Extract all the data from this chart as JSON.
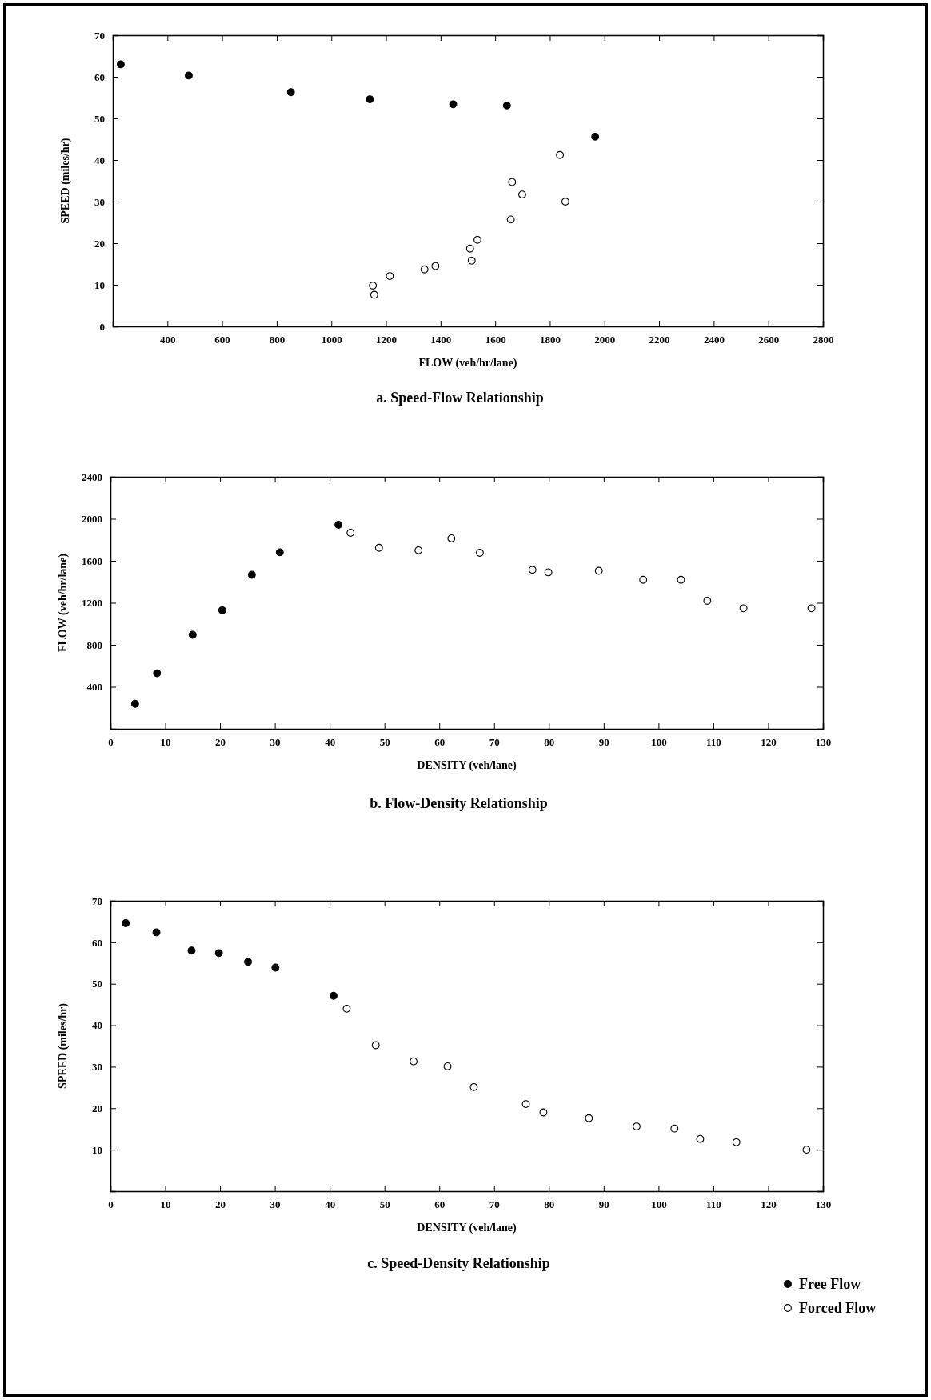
{
  "chart_data": [
    {
      "type": "scatter",
      "title": "a. Speed-Flow Relationship",
      "xlabel": "FLOW (veh/hr/lane)",
      "ylabel": "SPEED (miles/hr)",
      "xlim": [
        200,
        2800
      ],
      "xticks": [
        400,
        600,
        800,
        1000,
        1200,
        1400,
        1600,
        1800,
        2000,
        2200,
        2400,
        2600,
        2800
      ],
      "ylim": [
        0,
        70
      ],
      "yticks": [
        0,
        10,
        20,
        30,
        40,
        50,
        60,
        70
      ],
      "marker": "circle",
      "grid": false,
      "legend": false,
      "series": [
        {
          "color": "#000000",
          "x": [
            229,
            478,
            852,
            1141,
            1446,
            1643,
            1966
          ],
          "values": [
            63.0,
            60.3,
            56.3,
            54.6,
            53.4,
            53.1,
            45.6
          ]
        },
        {
          "color": "#ffffff",
          "x": [
            1152,
            1157,
            1214,
            1341,
            1381,
            1508,
            1514,
            1535,
            1657,
            1662,
            1699,
            1837,
            1857
          ],
          "values": [
            9.8,
            7.6,
            12.1,
            13.7,
            14.5,
            18.7,
            15.8,
            20.8,
            25.7,
            34.7,
            31.7,
            41.2,
            30.0
          ]
        }
      ]
    },
    {
      "type": "scatter",
      "title": "b. Flow-Density Relationship",
      "xlabel": "DENSITY (veh/lane)",
      "ylabel": "FLOW (veh/hr/lane)",
      "xlim": [
        0,
        130
      ],
      "xticks": [
        0,
        10,
        20,
        30,
        40,
        50,
        60,
        70,
        80,
        90,
        100,
        110,
        120,
        130
      ],
      "ylim": [
        0,
        2400
      ],
      "yticks": [
        400,
        800,
        1200,
        1600,
        2000,
        2400
      ],
      "marker": "circle",
      "grid": false,
      "legend": false,
      "series": [
        {
          "color": "#000000",
          "x": [
            4.5,
            8.5,
            15.0,
            20.4,
            25.8,
            30.9,
            41.6
          ],
          "values": [
            238,
            529,
            895,
            1129,
            1467,
            1681,
            1943
          ]
        },
        {
          "color": "#ffffff",
          "x": [
            43.8,
            49.0,
            56.2,
            62.2,
            67.4,
            77.0,
            79.9,
            89.1,
            97.2,
            104.1,
            108.9,
            115.5,
            127.9
          ],
          "values": [
            1867,
            1724,
            1700,
            1814,
            1676,
            1514,
            1490,
            1505,
            1419,
            1419,
            1219,
            1148,
            1148
          ]
        }
      ]
    },
    {
      "type": "scatter",
      "title": "c. Speed-Density Relationship",
      "xlabel": "DENSITY (veh/lane)",
      "ylabel": "SPEED (miles/hr)",
      "xlim": [
        0,
        130
      ],
      "xticks": [
        0,
        10,
        20,
        30,
        40,
        50,
        60,
        70,
        80,
        90,
        100,
        110,
        120,
        130
      ],
      "ylim": [
        0,
        70
      ],
      "yticks": [
        10,
        20,
        30,
        40,
        50,
        60,
        70
      ],
      "marker": "circle",
      "grid": false,
      "legend": "bottom right",
      "series": [
        {
          "name": "Free Flow",
          "color": "#000000",
          "x": [
            2.8,
            8.4,
            14.8,
            19.8,
            25.1,
            30.1,
            40.7
          ],
          "values": [
            64.6,
            62.4,
            58.0,
            57.4,
            55.3,
            53.9,
            47.1
          ]
        },
        {
          "name": "Forced Flow",
          "color": "#ffffff",
          "x": [
            43.1,
            48.4,
            55.3,
            61.5,
            66.3,
            75.8,
            79.0,
            87.3,
            96.0,
            102.9,
            107.6,
            114.2,
            127.0
          ],
          "values": [
            44.0,
            35.2,
            31.3,
            30.1,
            25.1,
            21.0,
            19.0,
            17.6,
            15.6,
            15.1,
            12.6,
            11.8,
            10.0
          ]
        }
      ]
    }
  ]
}
